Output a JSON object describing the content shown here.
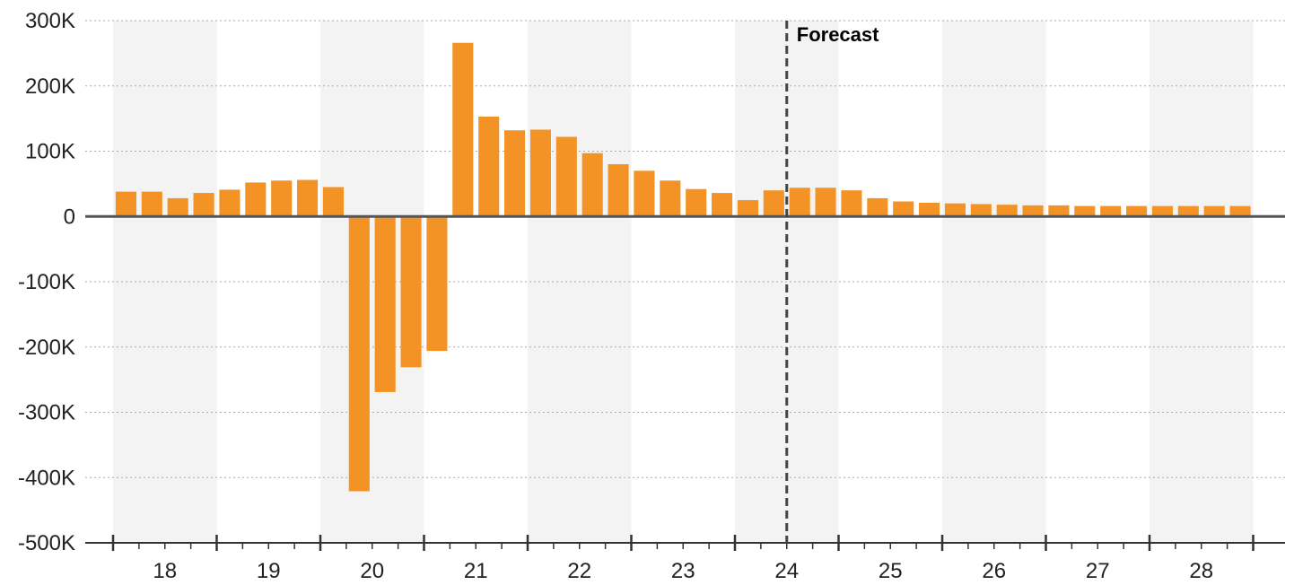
{
  "chart_data": {
    "type": "bar",
    "title": "",
    "xlabel": "",
    "ylabel": "",
    "ylim": [
      -500000,
      300000
    ],
    "yticks": [
      {
        "value": 300000,
        "label": "300K"
      },
      {
        "value": 200000,
        "label": "200K"
      },
      {
        "value": 100000,
        "label": "100K"
      },
      {
        "value": 0,
        "label": "0"
      },
      {
        "value": -100000,
        "label": "-100K"
      },
      {
        "value": -200000,
        "label": "-200K"
      },
      {
        "value": -300000,
        "label": "-300K"
      },
      {
        "value": -400000,
        "label": "-400K"
      },
      {
        "value": -500000,
        "label": "-500K"
      }
    ],
    "year_labels": [
      "18",
      "19",
      "20",
      "21",
      "22",
      "23",
      "24",
      "25",
      "26",
      "27",
      "28"
    ],
    "quarters_per_year": 4,
    "grid": "horizontal-dotted",
    "alternating_year_shading": true,
    "series": [
      {
        "values": [
          38000,
          38000,
          28000,
          36000,
          41000,
          52000,
          55000,
          56000,
          45000,
          -421000,
          -269000,
          -231000,
          -206000,
          266000,
          153000,
          132000,
          133000,
          122000,
          97000,
          80000,
          70000,
          55000,
          42000,
          36000,
          25000,
          40000,
          44000,
          44000,
          40000,
          28000,
          23000,
          21000,
          20000,
          19000,
          18000,
          17000,
          17000,
          16000,
          16000,
          16000,
          16000,
          16000,
          16000,
          16000
        ]
      }
    ],
    "forecast": {
      "label": "Forecast",
      "at_year": "24"
    },
    "colors": {
      "bar": "#F39325",
      "zero_line": "#555555",
      "grid": "#aaaaaa",
      "shade": "#f3f3f3",
      "axis": "#333333",
      "forecast_line": "#444444"
    }
  }
}
